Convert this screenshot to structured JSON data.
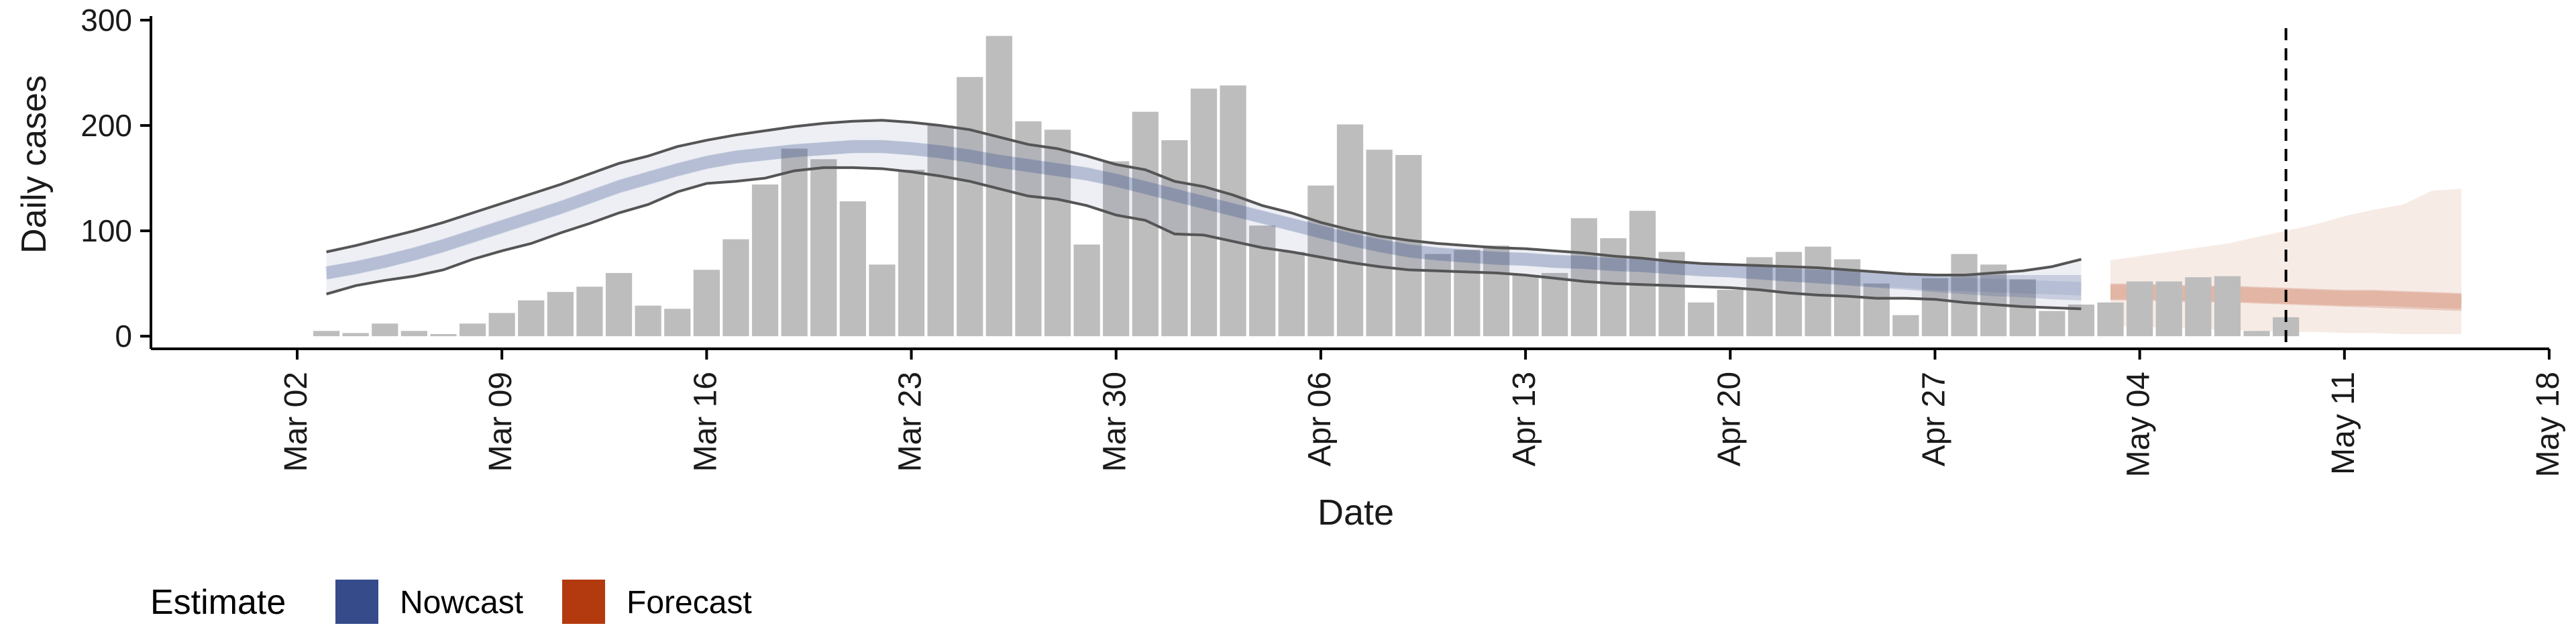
{
  "chart_data": {
    "type": "bar",
    "title": "",
    "xlabel": "Date",
    "ylabel": "Daily cases",
    "ylim": [
      -12,
      300
    ],
    "yticks": [
      0,
      100,
      200,
      300
    ],
    "xlim": [
      "2020-02-26",
      "2020-05-18"
    ],
    "xticks": [
      "2020-03-02",
      "2020-03-09",
      "2020-03-16",
      "2020-03-23",
      "2020-03-30",
      "2020-04-06",
      "2020-04-13",
      "2020-04-20",
      "2020-04-27",
      "2020-05-04",
      "2020-05-11",
      "2020-05-18"
    ],
    "xtick_labels": [
      "Mar 02",
      "Mar 09",
      "Mar 16",
      "Mar 23",
      "Mar 30",
      "Apr 06",
      "Apr 13",
      "Apr 20",
      "Apr 27",
      "May 04",
      "May 11",
      "May 18"
    ],
    "grid": false,
    "vline_date": "2020-05-09",
    "bars": {
      "start_date": "2020-03-03",
      "values": [
        5,
        3,
        12,
        5,
        2,
        12,
        22,
        34,
        42,
        47,
        60,
        29,
        26,
        63,
        92,
        144,
        178,
        168,
        128,
        68,
        158,
        200,
        246,
        285,
        204,
        196,
        87,
        166,
        213,
        186,
        235,
        238,
        105,
        80,
        143,
        201,
        177,
        172,
        78,
        82,
        86,
        58,
        60,
        112,
        93,
        119,
        80,
        32,
        44,
        75,
        80,
        85,
        73,
        50,
        20,
        55,
        78,
        68,
        54,
        24,
        30,
        32,
        52,
        52,
        56,
        57,
        5,
        18
      ]
    },
    "nowcast": {
      "start_date": "2020-03-03",
      "median": [
        60,
        65,
        71,
        78,
        86,
        95,
        104,
        113,
        122,
        132,
        142,
        150,
        158,
        165,
        170,
        173,
        176,
        178,
        180,
        180,
        178,
        175,
        171,
        166,
        162,
        158,
        154,
        148,
        141,
        134,
        127,
        120,
        113,
        106,
        99,
        92,
        86,
        81,
        78,
        76,
        74,
        73,
        71,
        70,
        68,
        67,
        65,
        63,
        62,
        60,
        58,
        57,
        55,
        53,
        52,
        50,
        49,
        48,
        47,
        46,
        45
      ],
      "lower50": [
        54,
        59,
        65,
        72,
        80,
        89,
        98,
        107,
        116,
        126,
        136,
        144,
        152,
        159,
        164,
        167,
        170,
        172,
        174,
        174,
        172,
        169,
        165,
        160,
        156,
        152,
        148,
        142,
        135,
        128,
        121,
        114,
        107,
        100,
        93,
        86,
        80,
        75,
        72,
        70,
        68,
        67,
        65,
        64,
        62,
        61,
        59,
        57,
        56,
        54,
        52,
        50,
        48,
        46,
        44,
        42,
        40,
        38,
        37,
        35,
        34
      ],
      "upper50": [
        66,
        71,
        77,
        84,
        92,
        101,
        110,
        119,
        128,
        138,
        148,
        156,
        164,
        171,
        176,
        179,
        182,
        184,
        186,
        186,
        184,
        181,
        177,
        172,
        168,
        164,
        160,
        154,
        147,
        140,
        133,
        126,
        119,
        112,
        105,
        98,
        92,
        87,
        84,
        82,
        80,
        79,
        77,
        76,
        74,
        73,
        71,
        69,
        68,
        66,
        64,
        63,
        62,
        60,
        59,
        58,
        58,
        58,
        58,
        58,
        58
      ],
      "lower90": [
        40,
        48,
        53,
        57,
        63,
        73,
        81,
        88,
        98,
        107,
        117,
        125,
        137,
        145,
        147,
        150,
        157,
        160,
        160,
        159,
        156,
        152,
        147,
        140,
        133,
        130,
        124,
        115,
        110,
        97,
        96,
        90,
        84,
        80,
        75,
        70,
        66,
        63,
        62,
        61,
        60,
        58,
        55,
        52,
        50,
        49,
        48,
        47,
        46,
        44,
        41,
        39,
        38,
        36,
        36,
        35,
        32,
        30,
        28,
        27,
        26
      ],
      "upper90": [
        80,
        86,
        93,
        100,
        108,
        117,
        126,
        135,
        144,
        154,
        164,
        171,
        180,
        186,
        191,
        195,
        199,
        202,
        204,
        205,
        203,
        200,
        196,
        189,
        182,
        178,
        171,
        163,
        158,
        147,
        142,
        134,
        124,
        117,
        108,
        101,
        95,
        91,
        88,
        86,
        84,
        83,
        81,
        79,
        76,
        74,
        71,
        69,
        68,
        67,
        66,
        65,
        63,
        61,
        59,
        58,
        58,
        60,
        62,
        66,
        73
      ]
    },
    "forecast": {
      "start_date": "2020-05-03",
      "median": [
        42,
        42,
        41,
        40,
        40,
        39,
        38,
        37,
        36,
        36,
        35,
        34,
        33
      ],
      "lower50": [
        34,
        34,
        33,
        32,
        32,
        31,
        30,
        29,
        28,
        27,
        26,
        25,
        24
      ],
      "upper50": [
        50,
        50,
        49,
        48,
        48,
        47,
        46,
        45,
        44,
        44,
        43,
        42,
        41
      ],
      "lower90": [
        10,
        9,
        8,
        7,
        6,
        5,
        4,
        4,
        3,
        3,
        2,
        2,
        2
      ],
      "upper90": [
        72,
        76,
        80,
        84,
        88,
        94,
        100,
        106,
        114,
        120,
        125,
        138,
        140
      ]
    },
    "legend": {
      "title": "Estimate",
      "placement": "bottom-left",
      "entries": [
        {
          "label": "Nowcast",
          "color": "#354b8a"
        },
        {
          "label": "Forecast",
          "color": "#b33a0e"
        }
      ]
    },
    "colors": {
      "bar": "#bdbdbd",
      "nowcast": "#354b8a",
      "forecast": "#b33a0e",
      "interval_line": "#555555"
    }
  }
}
